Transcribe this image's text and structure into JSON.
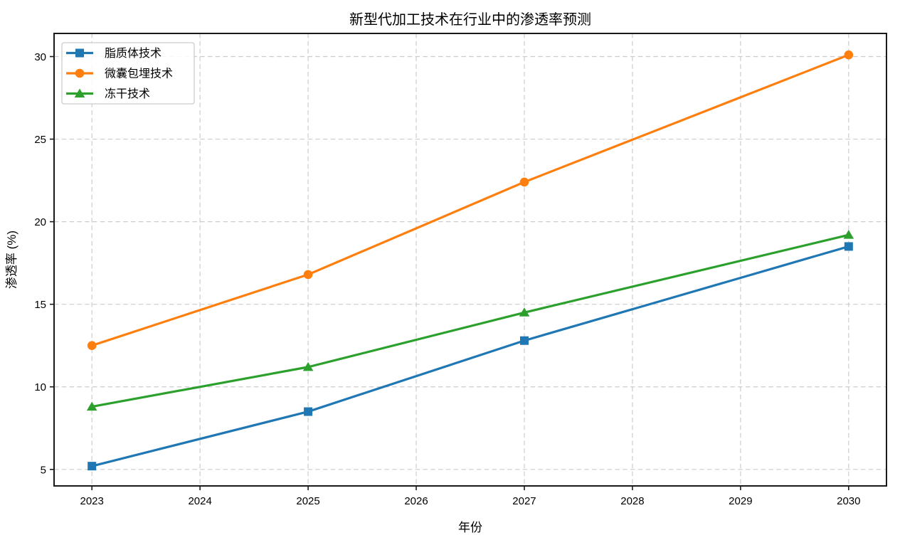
{
  "chart_data": {
    "type": "line",
    "title": "新型代加工技术在行业中的渗透率预测",
    "xlabel": "年份",
    "ylabel": "渗透率 (%)",
    "x": [
      2023,
      2025,
      2027,
      2030
    ],
    "series": [
      {
        "name": "脂质体技术",
        "color": "#1f77b4",
        "marker": "square",
        "values": [
          5.2,
          8.5,
          12.8,
          18.5
        ]
      },
      {
        "name": "微囊包埋技术",
        "color": "#ff7f0e",
        "marker": "circle",
        "values": [
          12.5,
          16.8,
          22.4,
          30.1
        ]
      },
      {
        "name": "冻干技术",
        "color": "#2ca02c",
        "marker": "triangle",
        "values": [
          8.8,
          11.2,
          14.5,
          19.2
        ]
      }
    ],
    "xticks": [
      2023,
      2024,
      2025,
      2026,
      2027,
      2028,
      2029,
      2030
    ],
    "yticks": [
      5,
      10,
      15,
      20,
      25,
      30
    ],
    "xlim": [
      2022.65,
      2030.35
    ],
    "ylim": [
      4.0,
      31.4
    ],
    "grid": true,
    "grid_style": "dashed",
    "grid_color": "#cccccc",
    "spine_color": "#1a1a1a",
    "background_color": "#ffffff",
    "legend_position": "upper left"
  }
}
